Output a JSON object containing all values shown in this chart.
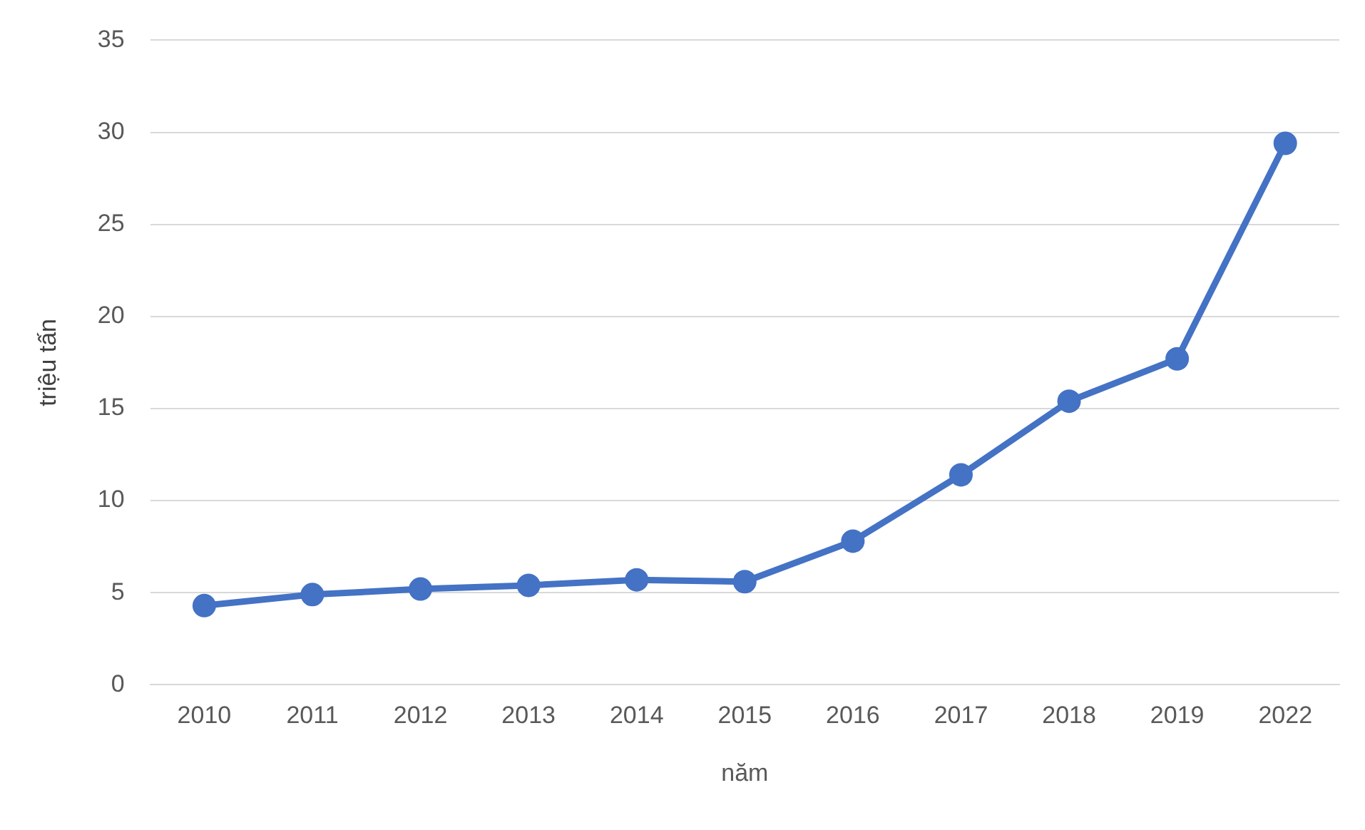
{
  "chart_data": {
    "type": "line",
    "xlabel": "năm",
    "ylabel": "triệu tấn",
    "categories": [
      "2010",
      "2011",
      "2012",
      "2013",
      "2014",
      "2015",
      "2016",
      "2017",
      "2018",
      "2019",
      "2022"
    ],
    "series": [
      {
        "color": "#4472c4",
        "values": [
          4.3,
          4.9,
          5.2,
          5.4,
          5.7,
          5.6,
          7.8,
          11.4,
          15.4,
          17.7,
          29.4
        ]
      }
    ],
    "ylim": [
      0,
      35
    ],
    "yticks": [
      0,
      5,
      10,
      15,
      20,
      25,
      30,
      35
    ],
    "grid": "y",
    "legend": false,
    "marker": "circle",
    "line_style": "solid"
  }
}
